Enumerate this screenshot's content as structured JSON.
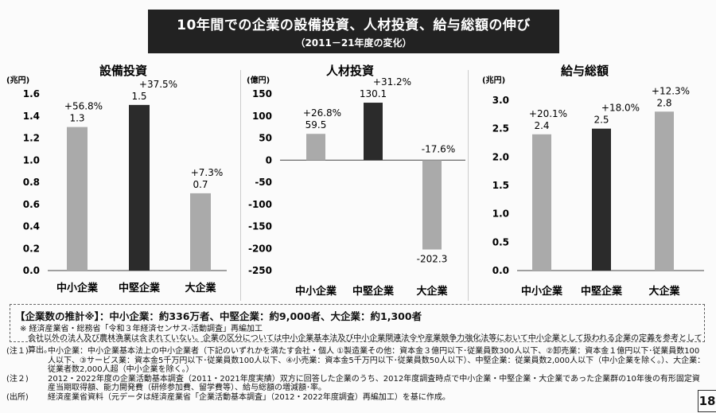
{
  "title": {
    "main": "10年間での企業の設備投資、人材投資、給与総額の伸び",
    "sub": "（2011－21年度の変化）"
  },
  "chart_data": [
    {
      "type": "bar",
      "title": "設備投資",
      "unit_label": "(兆円)",
      "categories": [
        "中小企業",
        "中堅企業",
        "大企業"
      ],
      "values": [
        1.3,
        1.5,
        0.7
      ],
      "value_labels": [
        "1.3",
        "1.5",
        "0.7"
      ],
      "changes": [
        "+56.8%",
        "+37.5%",
        "+7.3%"
      ],
      "ylim": [
        0,
        1.6
      ],
      "yticks": [
        "0.0",
        "0.2",
        "0.4",
        "0.6",
        "0.8",
        "1.0",
        "1.2",
        "1.4",
        "1.6"
      ],
      "colors": [
        "#aaaaaa",
        "#2b2b2b",
        "#aaaaaa"
      ]
    },
    {
      "type": "bar",
      "title": "人材投資",
      "unit_label": "(億円)",
      "categories": [
        "中小企業",
        "中堅企業",
        "大企業"
      ],
      "values": [
        59.5,
        130.1,
        -202.3
      ],
      "value_labels": [
        "59.5",
        "130.1",
        "-202.3"
      ],
      "changes": [
        "+26.8%",
        "+31.2%",
        "-17.6%"
      ],
      "ylim": [
        -250,
        150
      ],
      "yticks": [
        "-250",
        "-200",
        "-150",
        "-100",
        "-50",
        "0",
        "50",
        "100",
        "150"
      ],
      "colors": [
        "#aaaaaa",
        "#2b2b2b",
        "#aaaaaa"
      ]
    },
    {
      "type": "bar",
      "title": "給与総額",
      "unit_label": "(兆円)",
      "categories": [
        "中小企業",
        "中堅企業",
        "大企業"
      ],
      "values": [
        2.4,
        2.5,
        2.8
      ],
      "value_labels": [
        "2.4",
        "2.5",
        "2.8"
      ],
      "changes": [
        "+20.1%",
        "+18.0%",
        "+12.3%"
      ],
      "ylim": [
        0,
        3.0
      ],
      "yticks": [
        "0.0",
        "0.5",
        "1.0",
        "1.5",
        "2.0",
        "2.5",
        "3.0"
      ],
      "colors": [
        "#aaaaaa",
        "#2b2b2b",
        "#aaaaaa"
      ]
    }
  ],
  "summary": {
    "headline": "【企業数の推計※】：中小企業：約336万者、中堅企業：約9,000者、大企業：約1,300者",
    "source": "※ 経済産業省・総務省「令和３年経済センサス-活動調査」再編加工",
    "exclusion": "会社以外の法人及び農林漁業は含まれていない。企業の区分については中小企業基本法及び中小企業関連法令や産業競争力強化法等において中小企業として扱われる企業の定義を参考として算出。"
  },
  "notes": [
    {
      "key": "(注１)",
      "text": "中小企業：中小企業基本法上の中小企業者（下記のいずれかを満たす会社・個人 ①製造業その他：資本金３億円以下･従業員数300人以下、②卸売業：資本金１億円以下･従業員数100人以下、③サービス業：資本金5千万円以下･従業員数100人以下、④小売業：資本金5千万円以下･従業員数50人以下）、中堅企業：従業員数2,000人以下（中小企業を除く。）、大企業：従業者数2,000人超（中小企業を除く。）"
    },
    {
      "key": "(注２)",
      "text": "2012・2022年度の企業活動基本調査（2011・2021年度実績）双方に回答した企業のうち、2012年度調査時点で中小企業・中堅企業・大企業であった企業群の10年後の有形固定資産当期取得額、能力開発費（研修参加費、留学費等）、給与総額の増減額･率。"
    },
    {
      "key": "(出所)",
      "text": "経済産業省資料（元データは経済産業省「企業活動基本調査」（2012・2022年度調査）再編加工）を基に作成。"
    }
  ],
  "page_number": "18"
}
